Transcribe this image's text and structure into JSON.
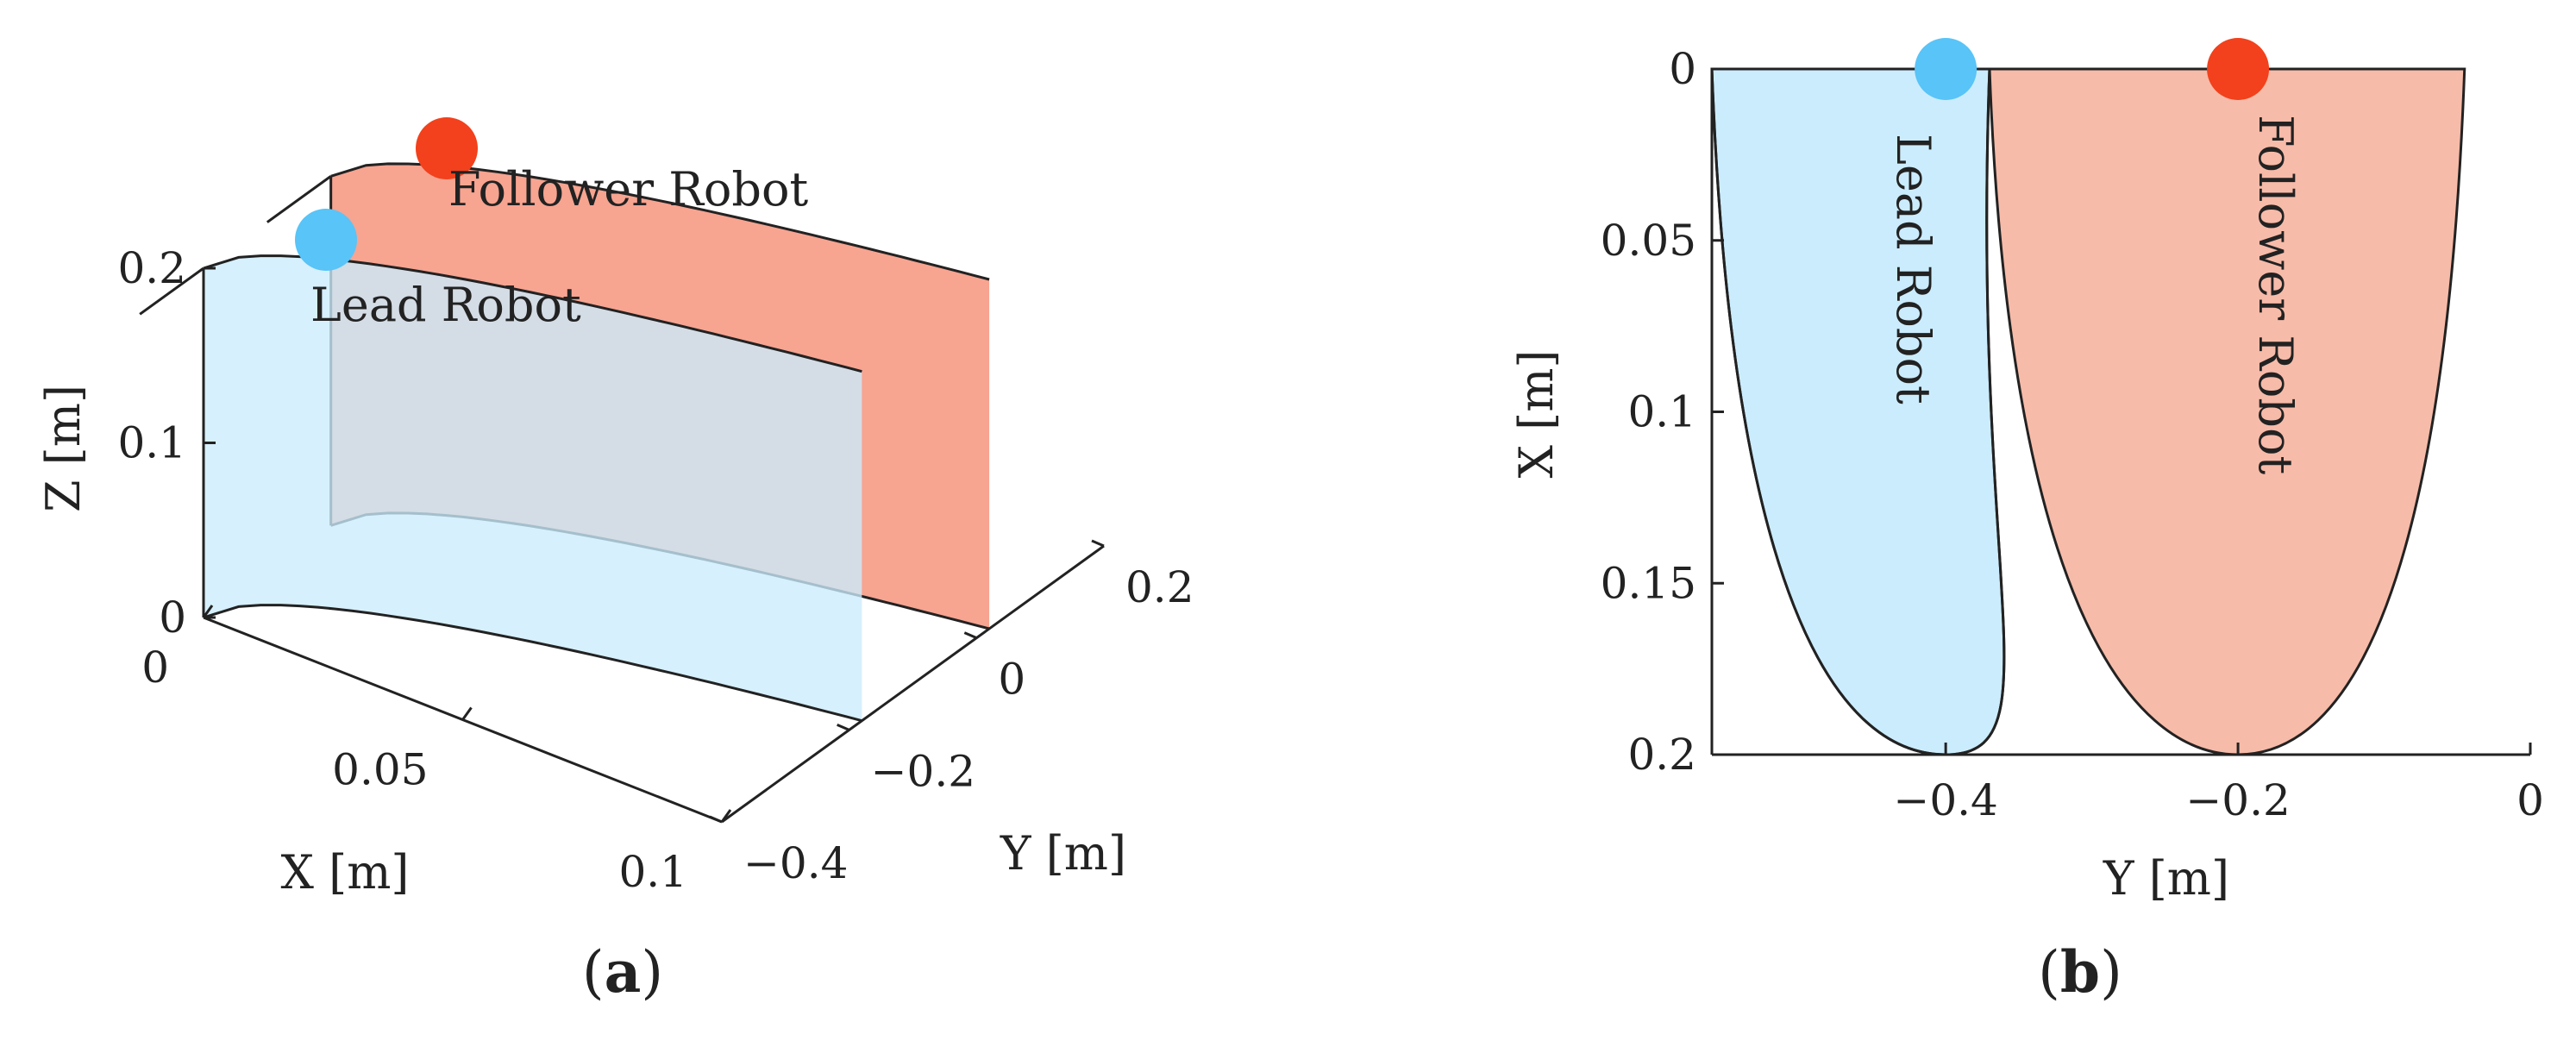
{
  "colors": {
    "lead": "#58c4f7",
    "follower": "#f2411c",
    "lead_fill": "#cbecfd",
    "follower_fill": "#f7bba9",
    "follower_side": "#f58b72",
    "axis": "#222222"
  },
  "chart_data": [
    {
      "type": "area",
      "view": "3d",
      "panel_label": "a",
      "xlabel": "X [m]",
      "ylabel": "Y [m]",
      "zlabel": "Z [m]",
      "x_ticks": [
        "0",
        "0.05",
        "0.1"
      ],
      "y_ticks": [
        "−0.4",
        "−0.2",
        "0",
        "0.2"
      ],
      "z_ticks": [
        "0",
        "0.1",
        "0.2"
      ],
      "xlim": [
        0,
        0.1
      ],
      "ylim": [
        -0.4,
        0.2
      ],
      "zlim": [
        0,
        0.2
      ],
      "series": [
        {
          "name": "Lead Robot",
          "start": {
            "x": 0,
            "y": -0.4,
            "z": 0.2
          },
          "surface_height": 0.2
        },
        {
          "name": "Follower Robot",
          "start": {
            "x": 0,
            "y": -0.2,
            "z": 0.2
          },
          "surface_height": 0.2
        }
      ]
    },
    {
      "type": "area",
      "view": "top",
      "panel_label": "b",
      "xlabel": "Y [m]",
      "ylabel": "X [m]",
      "x_ticks": [
        "−0.4",
        "−0.2",
        "0"
      ],
      "y_ticks": [
        "0",
        "0.05",
        "0.1",
        "0.15",
        "0.2"
      ],
      "xlim": [
        -0.56,
        0
      ],
      "ylim": [
        0,
        0.2
      ],
      "y_reversed": true,
      "series": [
        {
          "name": "Lead Robot",
          "start": {
            "y": -0.4,
            "x": 0
          },
          "vertex": {
            "y": -0.4,
            "x": 0.2
          },
          "top_span": [
            -0.56,
            -0.37
          ]
        },
        {
          "name": "Follower Robot",
          "start": {
            "y": -0.2,
            "x": 0
          },
          "vertex": {
            "y": -0.2,
            "x": 0.2
          },
          "top_span": [
            -0.37,
            -0.045
          ]
        }
      ]
    }
  ]
}
